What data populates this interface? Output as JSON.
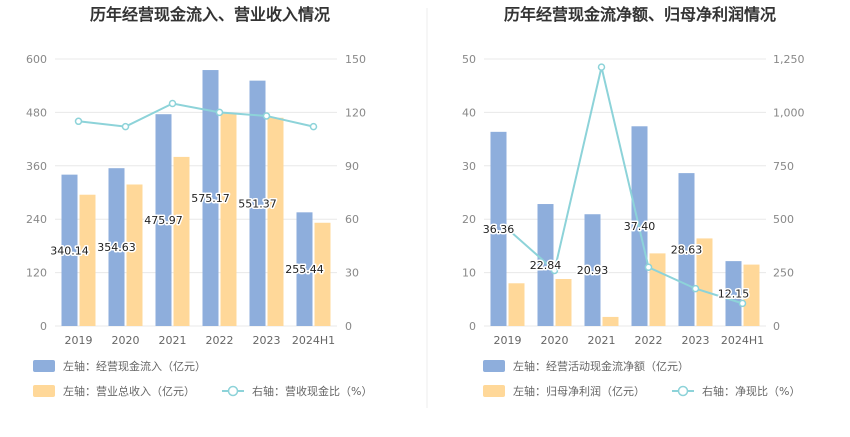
{
  "colors": {
    "bar_primary": "#8eaedc",
    "bar_secondary": "#ffd899",
    "line": "#8dd3d9",
    "grid": "#e8e8e8",
    "divider": "#eeeeee"
  },
  "chart_data": [
    {
      "type": "bar",
      "title": "历年经营现金流入、营业收入情况",
      "categories": [
        "2019",
        "2020",
        "2021",
        "2022",
        "2023",
        "2024H1"
      ],
      "left_axis": {
        "ylim": [
          0,
          600
        ],
        "ticks": [
          "0",
          "120",
          "240",
          "360",
          "480",
          "600"
        ]
      },
      "right_axis": {
        "ylim": [
          0,
          150
        ],
        "ticks": [
          "0",
          "30",
          "60",
          "90",
          "120",
          "150"
        ]
      },
      "series": [
        {
          "name": "左轴：经营现金流入（亿元）",
          "type": "bar",
          "axis": "left",
          "color": "#8eaedc",
          "values": [
            340.14,
            354.63,
            475.97,
            575.17,
            551.37,
            255.44
          ],
          "labels": [
            "340.14",
            "354.63",
            "475.97",
            "575.17",
            "551.37",
            "255.44"
          ]
        },
        {
          "name": "左轴：营业总收入（亿元）",
          "type": "bar",
          "axis": "left",
          "color": "#ffd899",
          "values": [
            295,
            318,
            380,
            478,
            468,
            232
          ]
        },
        {
          "name": "右轴：营收现金比（%）",
          "type": "line",
          "axis": "right",
          "color": "#8dd3d9",
          "values": [
            115,
            112,
            125,
            120,
            118,
            112
          ]
        }
      ],
      "grid": true,
      "legend_position": "bottom"
    },
    {
      "type": "bar",
      "title": "历年经营现金流净额、归母净利润情况",
      "categories": [
        "2019",
        "2020",
        "2021",
        "2022",
        "2023",
        "2024H1"
      ],
      "left_axis": {
        "ylim": [
          0,
          50
        ],
        "ticks": [
          "0",
          "10",
          "20",
          "30",
          "40",
          "50"
        ]
      },
      "right_axis": {
        "ylim": [
          0,
          1250
        ],
        "ticks": [
          "0",
          "250",
          "500",
          "750",
          "1,000",
          "1,250"
        ]
      },
      "series": [
        {
          "name": "左轴：经营活动现金流净额（亿元）",
          "type": "bar",
          "axis": "left",
          "color": "#8eaedc",
          "values": [
            36.36,
            22.84,
            20.93,
            37.4,
            28.63,
            12.15
          ],
          "labels": [
            "36.36",
            "22.84",
            "20.93",
            "37.40",
            "28.63",
            "12.15"
          ]
        },
        {
          "name": "左轴：归母净利润（亿元）",
          "type": "bar",
          "axis": "left",
          "color": "#ffd899",
          "values": [
            8.0,
            8.8,
            1.7,
            13.6,
            16.4,
            11.5
          ]
        },
        {
          "name": "右轴：净现比（%）",
          "type": "line",
          "axis": "right",
          "color": "#8dd3d9",
          "values": [
            455,
            260,
            1212,
            275,
            175,
            106
          ]
        }
      ],
      "grid": true,
      "legend_position": "bottom"
    }
  ]
}
